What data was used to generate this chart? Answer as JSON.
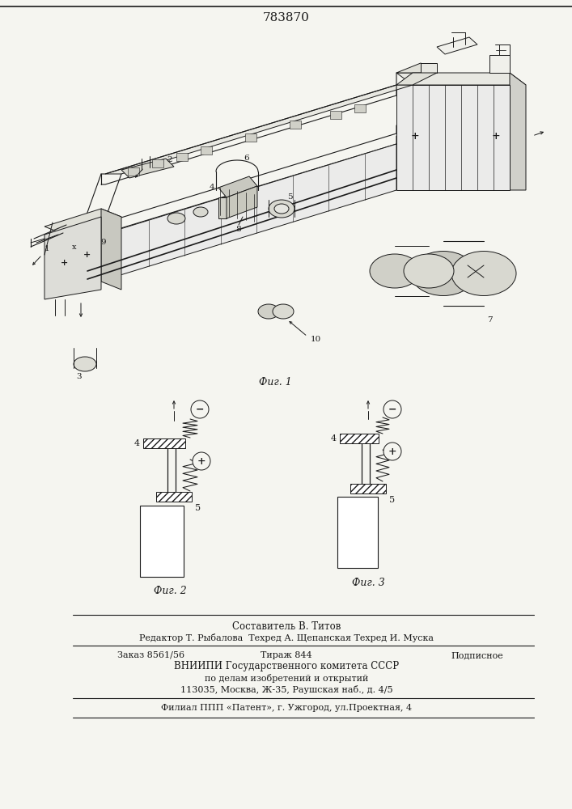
{
  "patent_number": "783870",
  "bg_color": "#f5f5f0",
  "line_color": "#1a1a1a",
  "footer": {
    "line1": "Составитель В. Титов",
    "line2": "Редактор Т. Рыбалова  Техред А. Щепанская Техред И. Муска",
    "line3_left": "Заказ 8561/56",
    "line3_mid": "Тираж 844",
    "line3_right": "Подписное",
    "line4": "ВНИИПИ Государственного комитета СССР",
    "line5": "по делам изобретений и открытий",
    "line6": "113035, Москва, Ж-35, Раушская наб., д. 4/5",
    "line7": "Филиал ППП «Патент», г. Ужгород, ул.Проектная, 4"
  }
}
